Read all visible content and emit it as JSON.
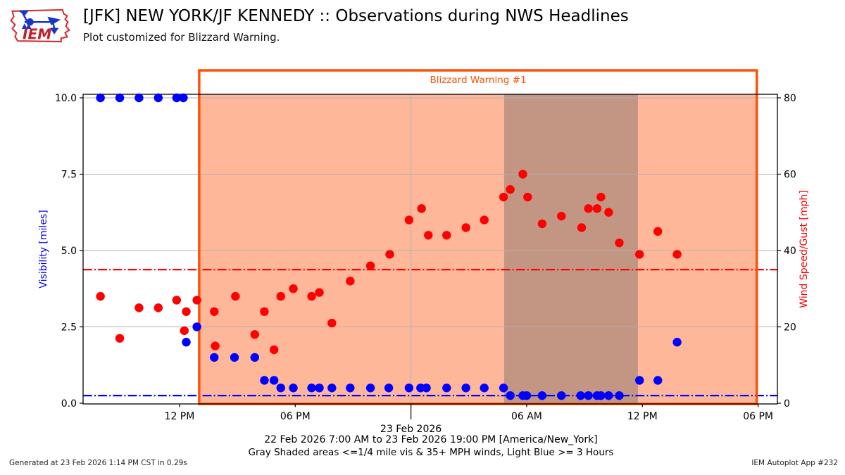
{
  "header": {
    "title": "[JFK] NEW YORK/JF KENNEDY :: Observations during NWS Headlines",
    "subtitle": "Plot customized for Blizzard Warning.",
    "logo_text": "IEM"
  },
  "footer": {
    "generated": "Generated at 23 Feb 2026 1:14 PM CST in 0.29s",
    "app": "IEM Autoplot App #232"
  },
  "chart_data": {
    "type": "scatter",
    "time_span_hours": 36,
    "x_start": "22 Feb 2026 7:00 AM",
    "x_end": "23 Feb 2026 19:00 PM",
    "timezone": "America/New_York",
    "x_ticks": [
      {
        "hour": 5,
        "label": "12 PM",
        "major": false
      },
      {
        "hour": 11,
        "label": "06 PM",
        "major": false
      },
      {
        "hour": 17,
        "label": "",
        "major": true,
        "date_label": "23 Feb 2026"
      },
      {
        "hour": 23,
        "label": "06 AM",
        "major": false
      },
      {
        "hour": 29,
        "label": "12 PM",
        "major": false
      },
      {
        "hour": 35,
        "label": "06 PM",
        "major": false
      }
    ],
    "y_left": {
      "label": "Visibility [miles]",
      "color": "#0000ff",
      "min": 0,
      "max": 10,
      "tick_values": [
        0,
        2.5,
        5,
        7.5,
        10
      ],
      "tick_labels": [
        "0.0",
        "2.5",
        "5.0",
        "7.5",
        "10.0"
      ],
      "ref_line_value": 0.25
    },
    "y_right": {
      "label": "Wind Speed/Gust [mph]",
      "color": "#ff0000",
      "min": 0,
      "max": 80,
      "tick_values": [
        0,
        20,
        40,
        60,
        80
      ],
      "tick_labels": [
        "0",
        "20",
        "40",
        "60",
        "80"
      ],
      "ref_line_value": 35
    },
    "warning_region": {
      "label": "Blizzard Warning #1",
      "start_hour": 6.02,
      "end_hour": 34.93,
      "border_color": "#ff5005",
      "fill": "rgba(255,96,32,0.45)"
    },
    "gray_region": {
      "start_hour": 21.83,
      "end_hour": 28.77,
      "fill": "rgba(96,96,96,0.38)"
    },
    "grid_color": "#b0b0b0",
    "series": [
      {
        "name": "visibility",
        "axis": "left",
        "color": "#0000ff",
        "points": [
          [
            0.9,
            10
          ],
          [
            1.9,
            10
          ],
          [
            2.9,
            10
          ],
          [
            3.9,
            10
          ],
          [
            4.85,
            10
          ],
          [
            5.2,
            10
          ],
          [
            5.35,
            2.0
          ],
          [
            5.9,
            2.5
          ],
          [
            6.8,
            1.5
          ],
          [
            7.85,
            1.5
          ],
          [
            8.9,
            1.5
          ],
          [
            9.4,
            0.75
          ],
          [
            9.9,
            0.75
          ],
          [
            10.25,
            0.5
          ],
          [
            10.9,
            0.5
          ],
          [
            11.85,
            0.5
          ],
          [
            12.25,
            0.5
          ],
          [
            12.9,
            0.5
          ],
          [
            13.85,
            0.5
          ],
          [
            14.9,
            0.5
          ],
          [
            15.85,
            0.5
          ],
          [
            16.9,
            0.5
          ],
          [
            17.5,
            0.5
          ],
          [
            17.8,
            0.5
          ],
          [
            18.85,
            0.5
          ],
          [
            19.85,
            0.5
          ],
          [
            20.8,
            0.5
          ],
          [
            21.8,
            0.5
          ],
          [
            22.15,
            0.25
          ],
          [
            22.8,
            0.25
          ],
          [
            23.0,
            0.25
          ],
          [
            23.8,
            0.25
          ],
          [
            24.8,
            0.25
          ],
          [
            25.8,
            0.25
          ],
          [
            26.2,
            0.25
          ],
          [
            26.65,
            0.25
          ],
          [
            26.85,
            0.25
          ],
          [
            27.25,
            0.25
          ],
          [
            27.8,
            0.25
          ],
          [
            28.85,
            0.75
          ],
          [
            29.8,
            0.75
          ],
          [
            30.8,
            2.0
          ]
        ]
      },
      {
        "name": "wind_speed_gust",
        "axis": "right",
        "color": "#ff0000",
        "points": [
          [
            0.9,
            28
          ],
          [
            1.9,
            17
          ],
          [
            2.9,
            25
          ],
          [
            3.9,
            25
          ],
          [
            4.85,
            27
          ],
          [
            5.25,
            19
          ],
          [
            5.35,
            24
          ],
          [
            5.9,
            27
          ],
          [
            6.8,
            24
          ],
          [
            6.85,
            15
          ],
          [
            7.9,
            28
          ],
          [
            8.9,
            18
          ],
          [
            9.4,
            24
          ],
          [
            9.9,
            14
          ],
          [
            10.25,
            28
          ],
          [
            10.9,
            30
          ],
          [
            11.85,
            28
          ],
          [
            12.25,
            29
          ],
          [
            12.9,
            21
          ],
          [
            13.85,
            32
          ],
          [
            14.9,
            36
          ],
          [
            15.9,
            39
          ],
          [
            16.9,
            48
          ],
          [
            17.55,
            51
          ],
          [
            17.9,
            44
          ],
          [
            18.85,
            44
          ],
          [
            19.85,
            46
          ],
          [
            20.8,
            48
          ],
          [
            21.8,
            54
          ],
          [
            22.15,
            56
          ],
          [
            22.8,
            60
          ],
          [
            23.05,
            54
          ],
          [
            23.8,
            47
          ],
          [
            24.8,
            49
          ],
          [
            25.85,
            46
          ],
          [
            26.2,
            51
          ],
          [
            26.65,
            51
          ],
          [
            26.85,
            54
          ],
          [
            27.25,
            50
          ],
          [
            27.8,
            42
          ],
          [
            28.85,
            39
          ],
          [
            29.8,
            45
          ],
          [
            30.8,
            39
          ]
        ]
      }
    ],
    "annotations": [
      "22 Feb 2026 7:00 AM to 23 Feb 2026 19:00 PM [America/New_York]",
      "Gray Shaded areas <=1/4 mile vis & 35+ MPH winds, Light Blue >= 3 Hours"
    ]
  }
}
